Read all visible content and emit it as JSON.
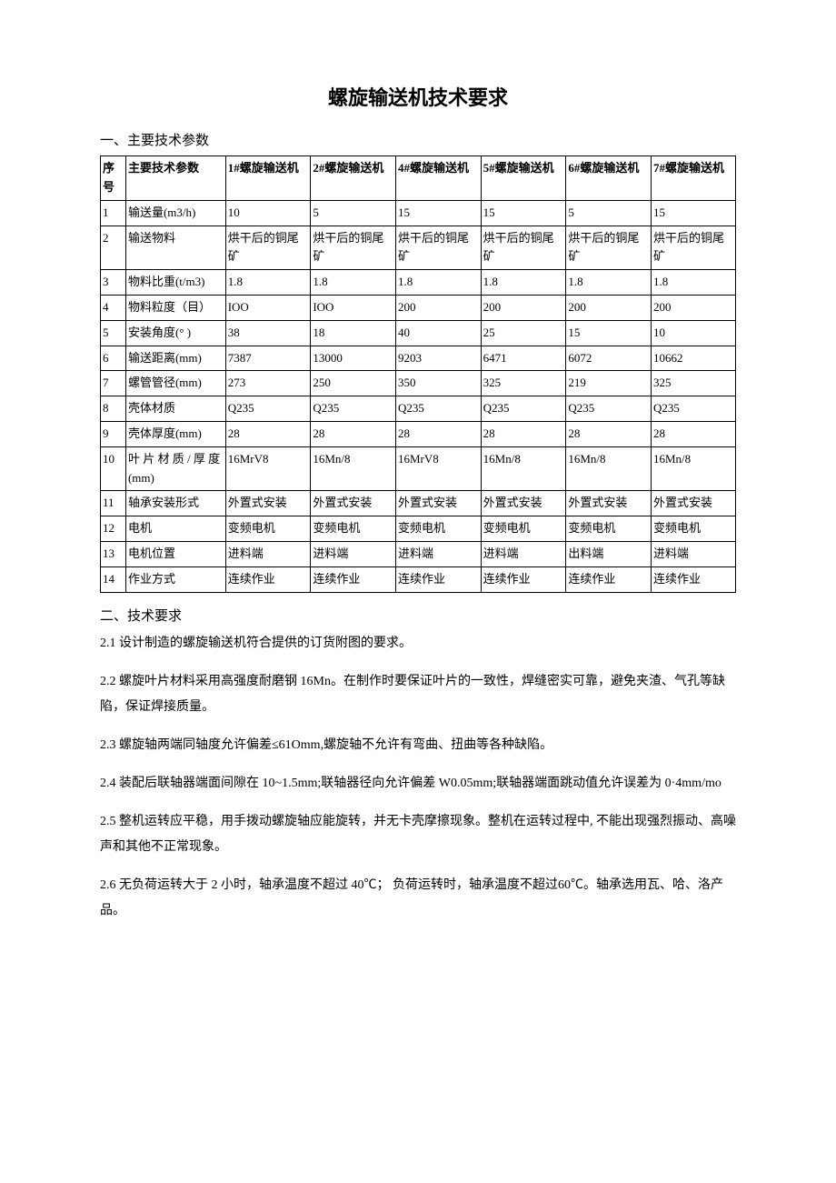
{
  "title": "螺旋输送机技术要求",
  "section1_header": "一、主要技术参数",
  "section2_header": "二、技术要求",
  "table": {
    "columns": [
      "序号",
      "主要技术参数",
      "1#螺旋输送机",
      "2#螺旋输送机",
      "4#螺旋输送机",
      "5#螺旋输送机",
      "6#螺旋输送机",
      "7#螺旋输送机"
    ],
    "col_widths_pct": [
      4,
      15.7,
      13.4,
      13.4,
      13.4,
      13.4,
      13.4,
      13.3
    ],
    "rows": [
      [
        "1",
        "输送量(m3/h)",
        "10",
        "5",
        "15",
        "15",
        "5",
        "15"
      ],
      [
        "2",
        "输送物料",
        "烘干后的铜尾矿",
        "烘干后的铜尾矿",
        "烘干后的铜尾矿",
        "烘干后的铜尾矿",
        "烘干后的铜尾矿",
        "烘干后的铜尾矿"
      ],
      [
        "3",
        "物料比重(t/m3)",
        "1.8",
        "1.8",
        "1.8",
        "1.8",
        "1.8",
        "1.8"
      ],
      [
        "4",
        "物料粒度（目）",
        "IOO",
        "IOO",
        "200",
        "200",
        "200",
        "200"
      ],
      [
        "5",
        "安装角度(° )",
        "38",
        "18",
        "40",
        "25",
        "15",
        "10"
      ],
      [
        "6",
        "输送距离(mm)",
        "7387",
        "13000",
        "9203",
        "6471",
        "6072",
        "10662"
      ],
      [
        "7",
        "螺管管径(mm)",
        "273",
        "250",
        "350",
        "325",
        "219",
        "325"
      ],
      [
        "8",
        "壳体材质",
        "Q235",
        "Q235",
        "Q235",
        "Q235",
        "Q235",
        "Q235"
      ],
      [
        "9",
        "壳体厚度(mm)",
        "28",
        "28",
        "28",
        "28",
        "28",
        "28"
      ],
      [
        "10",
        "叶 片 材 质 / 厚 度(mm)",
        "16MrV8",
        "16Mn/8",
        "16MrV8",
        "16Mn/8",
        "16Mn/8",
        "16Mn/8"
      ],
      [
        "11",
        "轴承安装形式",
        "外置式安装",
        "外置式安装",
        "外置式安装",
        "外置式安装",
        "外置式安装",
        "外置式安装"
      ],
      [
        "12",
        "电机",
        "变频电机",
        "变频电机",
        "变频电机",
        "变频电机",
        "变频电机",
        "变频电机"
      ],
      [
        "13",
        "电机位置",
        "进料端",
        "进料端",
        "进料端",
        "进料端",
        "出料端",
        "进料端"
      ],
      [
        "14",
        "作业方式",
        "连续作业",
        "连续作业",
        "连续作业",
        "连续作业",
        "连续作业",
        "连续作业"
      ]
    ],
    "border_color": "#000000",
    "header_fontsize": 13,
    "cell_fontsize": 13,
    "background_color": "#ffffff"
  },
  "requirements": [
    "2.1   设计制造的螺旋输送机符合提供的订货附图的要求。",
    "2.2   螺旋叶片材料采用高强度耐磨钢 16Mn。在制作时要保证叶片的一致性，焊缝密实可靠，避免夹渣、气孔等缺陷，保证焊接质量。",
    "2.3   螺旋轴两端同轴度允许偏差≤61Omm,螺旋轴不允许有弯曲、扭曲等各种缺陷。",
    "2.4   装配后联轴器端面间隙在 10~1.5mm;联轴器径向允许偏差 W0.05mm;联轴器端面跳动值允许误差为 0·4mm/mo",
    "2.5   整机运转应平稳，用手拨动螺旋轴应能旋转，并无卡壳摩擦现象。整机在运转过程中, 不能出现强烈振动、高噪声和其他不正常现象。",
    "2.6   无负荷运转大于 2 小时，轴承温度不超过 40℃； 负荷运转时，轴承温度不超过60℃。轴承选用瓦、哈、洛产品。"
  ],
  "typography": {
    "title_fontsize": 22,
    "title_fontweight": "bold",
    "body_fontsize": 14,
    "line_height": 2.0,
    "text_color": "#000000",
    "background_color": "#ffffff",
    "font_family_body": "SimSun",
    "font_family_title": "SimHei"
  }
}
